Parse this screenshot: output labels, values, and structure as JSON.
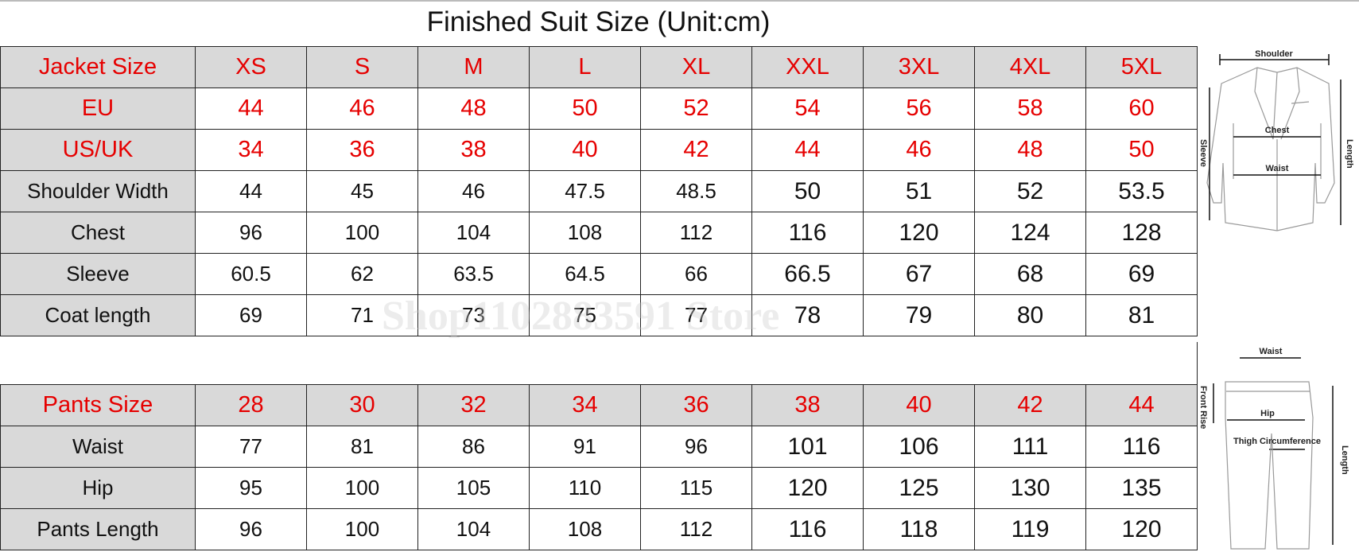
{
  "title": "Finished Suit Size  (Unit:cm)",
  "watermark": "Shop1102883591 Store",
  "colors": {
    "size_label": "#e60000",
    "label_bg": "#d9d9d9"
  },
  "jacket": {
    "header": [
      "Jacket Size",
      "XS",
      "S",
      "M",
      "L",
      "XL",
      "XXL",
      "3XL",
      "4XL",
      "5XL"
    ],
    "rows": [
      {
        "label": "EU",
        "values": [
          "44",
          "46",
          "48",
          "50",
          "52",
          "54",
          "56",
          "58",
          "60"
        ],
        "red": true
      },
      {
        "label": "US/UK",
        "values": [
          "34",
          "36",
          "38",
          "40",
          "42",
          "44",
          "46",
          "48",
          "50"
        ],
        "red": true
      },
      {
        "label": "Shoulder Width",
        "values": [
          "44",
          "45",
          "46",
          "47.5",
          "48.5",
          "50",
          "51",
          "52",
          "53.5"
        ]
      },
      {
        "label": "Chest",
        "values": [
          "96",
          "100",
          "104",
          "108",
          "112",
          "116",
          "120",
          "124",
          "128"
        ]
      },
      {
        "label": "Sleeve",
        "values": [
          "60.5",
          "62",
          "63.5",
          "64.5",
          "66",
          "66.5",
          "67",
          "68",
          "69"
        ]
      },
      {
        "label": "Coat length",
        "values": [
          "69",
          "71",
          "73",
          "75",
          "77",
          "78",
          "79",
          "80",
          "81"
        ]
      }
    ]
  },
  "pants": {
    "header": [
      "Pants Size",
      "28",
      "30",
      "32",
      "34",
      "36",
      "38",
      "40",
      "42",
      "44"
    ],
    "rows": [
      {
        "label": "Waist",
        "values": [
          "77",
          "81",
          "86",
          "91",
          "96",
          "101",
          "106",
          "111",
          "116"
        ]
      },
      {
        "label": "Hip",
        "values": [
          "95",
          "100",
          "105",
          "110",
          "115",
          "120",
          "125",
          "130",
          "135"
        ]
      },
      {
        "label": "Pants Length",
        "values": [
          "96",
          "100",
          "104",
          "108",
          "112",
          "116",
          "118",
          "119",
          "120"
        ]
      }
    ]
  },
  "diagram": {
    "jacket_labels": {
      "shoulder": "Shoulder",
      "chest": "Chest",
      "waist": "Waist",
      "sleeve": "Sleeve",
      "length": "Length"
    },
    "pants_labels": {
      "waist": "Waist",
      "front_rise": "Front Rise",
      "hip": "Hip",
      "thigh": "Thigh Circumference",
      "length": "Length"
    }
  }
}
